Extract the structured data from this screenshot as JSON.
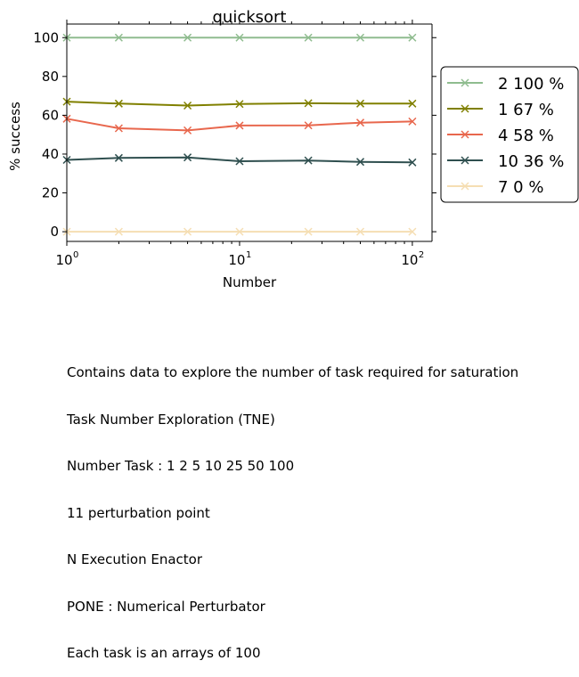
{
  "chart_data": {
    "type": "line",
    "title": "quicksort",
    "xlabel": "Number",
    "ylabel": "% success",
    "xscale": "log",
    "x": [
      1,
      2,
      5,
      10,
      25,
      50,
      100
    ],
    "xlim": [
      1,
      130
    ],
    "ylim": [
      -5,
      107
    ],
    "xticks": [
      {
        "value": 1,
        "base": "10",
        "exp": "0"
      },
      {
        "value": 10,
        "base": "10",
        "exp": "1"
      },
      {
        "value": 100,
        "base": "10",
        "exp": "2"
      }
    ],
    "yticks": [
      0,
      20,
      40,
      60,
      80,
      100
    ],
    "legend_position": "right, outside plot",
    "marker": "x",
    "series": [
      {
        "name": "2 100 %",
        "color": "#8fbc8f",
        "values": [
          100,
          100,
          100,
          100,
          100,
          100,
          100
        ]
      },
      {
        "name": "1 67 %",
        "color": "#808000",
        "values": [
          67,
          66,
          65,
          65.8,
          66.2,
          66,
          66
        ]
      },
      {
        "name": "4 58 %",
        "color": "#e8674d",
        "values": [
          58.2,
          53.3,
          52.2,
          54.7,
          54.8,
          56.2,
          56.8
        ]
      },
      {
        "name": "10 36 %",
        "color": "#2f4f4f",
        "values": [
          37,
          38,
          38.3,
          36.3,
          36.7,
          36,
          35.7
        ]
      },
      {
        "name": "7 0 %",
        "color": "#f5deb3",
        "values": [
          0,
          0,
          0,
          0,
          0,
          0,
          0
        ]
      }
    ]
  },
  "caption": {
    "lines": [
      "Contains data to explore the number of task required for saturation",
      "Task Number Exploration (TNE)",
      "Number Task : 1 2 5 10 25 50 100",
      "11 perturbation point",
      "N Execution Enactor",
      "PONE : Numerical Perturbator",
      "Each task is an arrays of 100"
    ]
  }
}
